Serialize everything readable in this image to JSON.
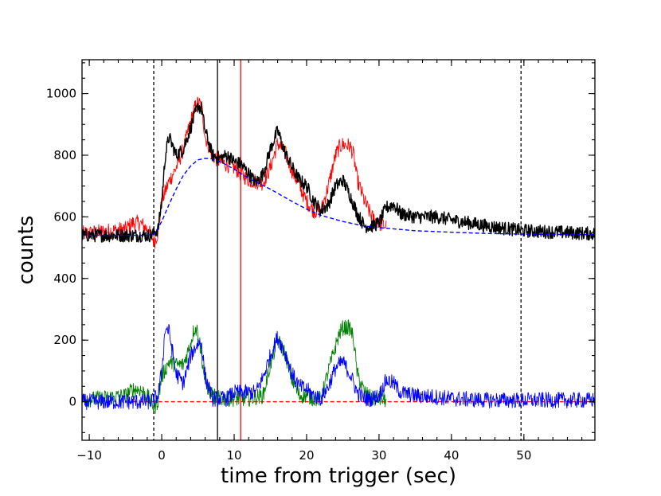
{
  "chart_data": {
    "type": "line",
    "xlabel": "time from trigger (sec)",
    "ylabel": "counts",
    "xlim": [
      -11,
      59.8
    ],
    "ylim": [
      -125,
      1110
    ],
    "x_major_ticks": [
      -10,
      0,
      10,
      20,
      30,
      40,
      50
    ],
    "x_tick_labels": [
      "−10",
      "0",
      "10",
      "20",
      "30",
      "40",
      "50"
    ],
    "x_minor_step": 2,
    "y_major_ticks": [
      0,
      200,
      400,
      600,
      800,
      1000
    ],
    "y_tick_labels": [
      "0",
      "200",
      "400",
      "600",
      "800",
      "1000"
    ],
    "y_minor_step": 50,
    "grid": false,
    "legend": "none",
    "vertical_lines": [
      {
        "x": -1.1,
        "color": "#000000",
        "style": "dashed"
      },
      {
        "x": 49.6,
        "color": "#000000",
        "style": "dashed"
      },
      {
        "x": 7.7,
        "color": "#000000",
        "style": "solid"
      },
      {
        "x": 10.9,
        "color": "#ff0000",
        "style": "solid"
      }
    ],
    "series": [
      {
        "color": "#ff0000",
        "style": "thin",
        "x": [
          -11,
          -9,
          -7,
          -5,
          -4,
          -3,
          -2,
          -1.5,
          -1,
          -0.5,
          0,
          1,
          2,
          3,
          4,
          4.5,
          5,
          5.5,
          6,
          7,
          8,
          9,
          10,
          12,
          14,
          15,
          16,
          17,
          18,
          19,
          20,
          21,
          22,
          23,
          24,
          24.5,
          25,
          26,
          26.5,
          27,
          28,
          29,
          30,
          31
        ],
        "y": [
          545,
          550,
          555,
          560,
          580,
          580,
          560,
          540,
          520,
          550,
          650,
          715,
          760,
          820,
          910,
          950,
          970,
          960,
          860,
          800,
          780,
          770,
          760,
          720,
          710,
          760,
          840,
          810,
          750,
          700,
          650,
          620,
          620,
          700,
          800,
          825,
          835,
          830,
          800,
          720,
          650,
          600,
          580,
          570
        ]
      },
      {
        "color": "#000000",
        "style": "thick",
        "x": [
          -11,
          -5,
          -3,
          -1.5,
          -0.5,
          0,
          0.5,
          1,
          2,
          3,
          4,
          5,
          5.5,
          6,
          7,
          8,
          9,
          10,
          11,
          12,
          13,
          14,
          15,
          16,
          17,
          18,
          19,
          20,
          21,
          22,
          23,
          24,
          25,
          26,
          27,
          28,
          29,
          30,
          31,
          32,
          33,
          35,
          38,
          40,
          45,
          50,
          55,
          59.8
        ],
        "y": [
          540,
          540,
          540,
          540,
          560,
          650,
          800,
          860,
          800,
          820,
          890,
          960,
          950,
          880,
          800,
          790,
          800,
          780,
          770,
          740,
          710,
          740,
          820,
          880,
          810,
          760,
          720,
          700,
          650,
          620,
          640,
          700,
          720,
          670,
          610,
          570,
          570,
          580,
          630,
          640,
          610,
          600,
          600,
          590,
          570,
          555,
          550,
          545
        ]
      },
      {
        "color": "#0000ff",
        "style": "dashed",
        "x": [
          -11,
          -4,
          -2,
          -1,
          0,
          1,
          2,
          3,
          4,
          5,
          6,
          7,
          8,
          10,
          12,
          15,
          18,
          20,
          22,
          25,
          28,
          30,
          35,
          40,
          45,
          50,
          55,
          59.8
        ],
        "y": [
          540,
          540,
          540,
          545,
          585,
          640,
          690,
          735,
          765,
          785,
          790,
          788,
          780,
          755,
          725,
          690,
          650,
          625,
          605,
          585,
          570,
          565,
          555,
          550,
          546,
          544,
          543,
          542
        ]
      },
      {
        "color": "#ff0000",
        "style": "dashed",
        "x": [
          -4,
          59.8
        ],
        "y": [
          0,
          0
        ]
      },
      {
        "color": "#008000",
        "style": "thin",
        "x": [
          -11,
          -9,
          -7,
          -5,
          -4,
          -3,
          -2,
          -1.5,
          -1,
          -0.5,
          0,
          1,
          2,
          3,
          4,
          4.5,
          5,
          5.5,
          6,
          7,
          8,
          9,
          10,
          12,
          14,
          15,
          16,
          17,
          18,
          19,
          20,
          21,
          22,
          23,
          24,
          24.5,
          25,
          26,
          26.5,
          27,
          28,
          29,
          30,
          31
        ],
        "y": [
          5,
          10,
          15,
          20,
          40,
          40,
          20,
          0,
          -20,
          5,
          80,
          130,
          120,
          120,
          190,
          240,
          230,
          150,
          60,
          20,
          10,
          10,
          10,
          10,
          20,
          120,
          200,
          160,
          70,
          20,
          20,
          10,
          10,
          100,
          180,
          220,
          240,
          240,
          200,
          90,
          30,
          10,
          10,
          5
        ]
      },
      {
        "color": "#0000ff",
        "style": "thin",
        "x": [
          -11,
          -5,
          -3,
          -1.5,
          -0.5,
          0,
          0.5,
          1,
          2,
          3,
          4,
          5,
          5.5,
          6,
          7,
          8,
          9,
          10,
          11,
          12,
          13,
          14,
          15,
          16,
          17,
          18,
          19,
          20,
          21,
          22,
          23,
          24,
          25,
          26,
          27,
          28,
          29,
          30,
          31,
          32,
          33,
          35,
          38,
          40,
          45,
          50,
          55,
          59.8
        ],
        "y": [
          0,
          0,
          0,
          0,
          20,
          100,
          240,
          230,
          90,
          60,
          150,
          190,
          190,
          80,
          10,
          10,
          10,
          30,
          30,
          30,
          30,
          80,
          150,
          210,
          160,
          90,
          50,
          40,
          20,
          10,
          50,
          110,
          130,
          90,
          30,
          10,
          10,
          20,
          70,
          60,
          30,
          20,
          15,
          10,
          5,
          5,
          5,
          5
        ]
      }
    ]
  }
}
